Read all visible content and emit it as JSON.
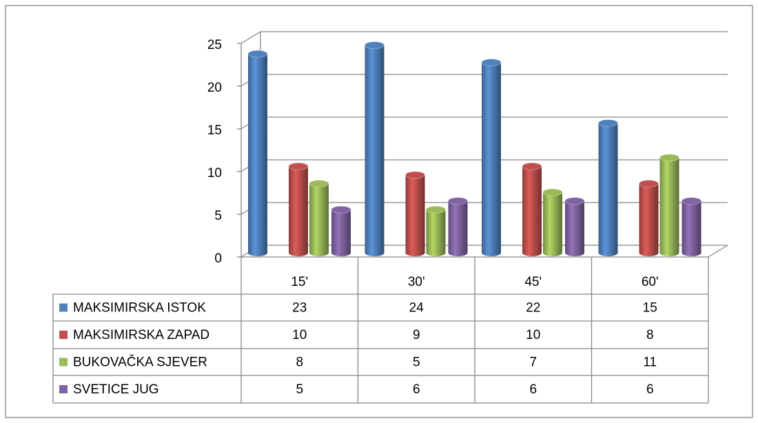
{
  "chart_data": {
    "type": "bar",
    "categories": [
      "15'",
      "30'",
      "45'",
      "60'"
    ],
    "series": [
      {
        "name": "MAKSIMIRSKA ISTOK",
        "color": "#4f81bd",
        "values": [
          23,
          24,
          22,
          15
        ]
      },
      {
        "name": "MAKSIMIRSKA ZAPAD",
        "color": "#c0504d",
        "values": [
          10,
          9,
          10,
          8
        ]
      },
      {
        "name": "BUKOVAČKA SJEVER",
        "color": "#9bbb59",
        "values": [
          8,
          5,
          7,
          11
        ]
      },
      {
        "name": "SVETICE JUG",
        "color": "#8064a2",
        "values": [
          5,
          6,
          6,
          6
        ]
      }
    ],
    "ylim": [
      0,
      25
    ],
    "yticks": [
      0,
      5,
      10,
      15,
      20,
      25
    ],
    "grid": true
  }
}
